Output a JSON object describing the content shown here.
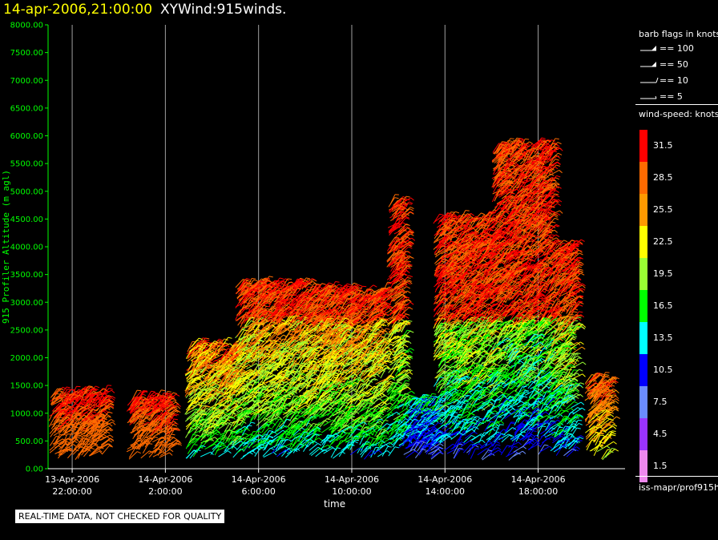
{
  "header": {
    "datetime": "14-apr-2006,21:00:00",
    "product": "XYWind:915winds."
  },
  "footer": {
    "quality_notice": "REAL-TIME DATA, NOT CHECKED FOR QUALITY"
  },
  "legend": {
    "barb_title": "barb flags in knots",
    "barb_flags": [
      "== 100",
      "== 50",
      "== 10",
      "== 5"
    ],
    "speed_title": "wind-speed: knots",
    "source": "iss-mapr/prof915h"
  },
  "colors": {
    "background": "#000000",
    "title_time": "#ffff00",
    "axis": "#00ff00",
    "gridline": "#a0a0a0",
    "text": "#ffffff"
  },
  "chart_data": {
    "type": "scatter",
    "title": "14-apr-2006,21:00:00  XYWind:915winds.",
    "xlabel": "time",
    "ylabel": "915 Profiler Altitude (m agl)",
    "ylim": [
      0,
      8000
    ],
    "y_ticks": [
      "0.00",
      "500.00",
      "1000.00",
      "1500.00",
      "2000.00",
      "2500.00",
      "3000.00",
      "3500.00",
      "4000.00",
      "4500.00",
      "5000.00",
      "5500.00",
      "6000.00",
      "6500.00",
      "7000.00",
      "7500.00",
      "8000.00"
    ],
    "x_ticks": [
      {
        "date": "13-Apr-2006",
        "time": "22:00:00"
      },
      {
        "date": "14-Apr-2006",
        "time": "2:00:00"
      },
      {
        "date": "14-Apr-2006",
        "time": "6:00:00"
      },
      {
        "date": "14-Apr-2006",
        "time": "10:00:00"
      },
      {
        "date": "14-Apr-2006",
        "time": "14:00:00"
      },
      {
        "date": "14-Apr-2006",
        "time": "18:00:00"
      }
    ],
    "grid": "vertical lines at x ticks",
    "xlim": [
      "2006-04-13 21:00",
      "2006-04-14 21:00"
    ],
    "colorbar": [
      {
        "label": "31.5",
        "color": "#ff0000"
      },
      {
        "label": "28.5",
        "color": "#ff6a00"
      },
      {
        "label": "25.5",
        "color": "#ff9900"
      },
      {
        "label": "22.5",
        "color": "#ffff00"
      },
      {
        "label": "19.5",
        "color": "#99ff33"
      },
      {
        "label": "16.5",
        "color": "#00ff00"
      },
      {
        "label": "13.5",
        "color": "#00ffff"
      },
      {
        "label": "10.5",
        "color": "#0000ff"
      },
      {
        "label": "7.5",
        "color": "#6a8cff"
      },
      {
        "label": "4.5",
        "color": "#9933ff"
      },
      {
        "label": "1.5",
        "color": "#ee88ee"
      }
    ],
    "barb_clusters": [
      {
        "start": "2006-04-13 21:00",
        "end": "2006-04-13 23:20",
        "top_m": 1350,
        "low_speed": 25.5,
        "high_speed": 31.5
      },
      {
        "start": "2006-04-14 00:20",
        "end": "2006-04-14 02:10",
        "top_m": 1250,
        "low_speed": 25.5,
        "high_speed": 31.5
      },
      {
        "start": "2006-04-14 02:50",
        "end": "2006-04-14 05:00",
        "top_m": 2200,
        "low_speed": 7.5,
        "high_speed": 31.5
      },
      {
        "start": "2006-04-14 05:00",
        "end": "2006-04-14 08:00",
        "top_m": 3300,
        "low_speed": 7.5,
        "high_speed": 31.5
      },
      {
        "start": "2006-04-14 08:00",
        "end": "2006-04-14 11:20",
        "top_m": 3200,
        "low_speed": 7.5,
        "high_speed": 31.5
      },
      {
        "start": "2006-04-14 11:30",
        "end": "2006-04-14 12:10",
        "top_m": 4800,
        "low_speed": 7.5,
        "high_speed": 31.5
      },
      {
        "start": "2006-04-14 12:10",
        "end": "2006-04-14 13:30",
        "top_m": 1200,
        "low_speed": 4.5,
        "high_speed": 16.5
      },
      {
        "start": "2006-04-14 13:30",
        "end": "2006-04-14 16:00",
        "top_m": 4500,
        "low_speed": 4.5,
        "high_speed": 31.5
      },
      {
        "start": "2006-04-14 16:00",
        "end": "2006-04-14 18:30",
        "top_m": 5800,
        "low_speed": 4.5,
        "high_speed": 31.5
      },
      {
        "start": "2006-04-14 18:30",
        "end": "2006-04-14 19:30",
        "top_m": 4000,
        "low_speed": 4.5,
        "high_speed": 31.5
      },
      {
        "start": "2006-04-14 20:00",
        "end": "2006-04-14 21:00",
        "top_m": 1600,
        "low_speed": 16.5,
        "high_speed": 31.5
      }
    ]
  }
}
